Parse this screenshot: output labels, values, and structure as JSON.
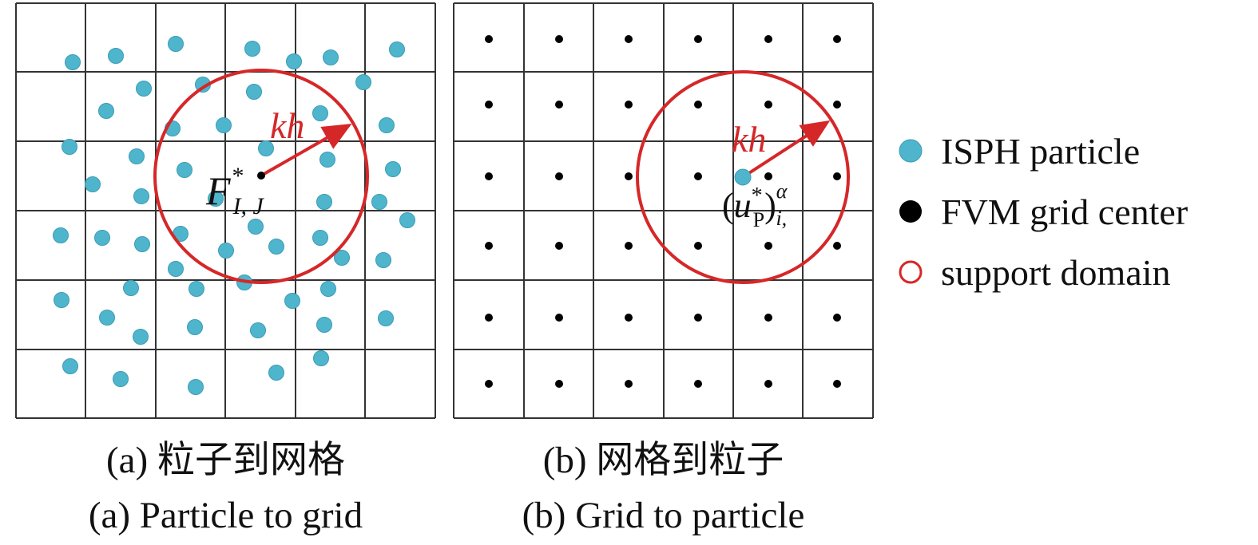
{
  "colors": {
    "particle": "#4fb5cc",
    "grid_center": "#000000",
    "support": "#d62728",
    "grid_line": "#333333"
  },
  "legend": {
    "particle": "ISPH particle",
    "grid_center": "FVM grid center",
    "support": "support domain"
  },
  "panel_a": {
    "radius_label": "kh",
    "center_symbol": "F",
    "center_sup": "*",
    "center_sub": "I, J",
    "caption_zh": "(a) 粒子到网格",
    "caption_en": "(a) Particle to grid"
  },
  "panel_b": {
    "radius_label": "kh",
    "particle_symbol": "u",
    "particle_sup": "*",
    "particle_sub": "P",
    "outer_sup": "α",
    "outer_sub": "i,",
    "caption_zh": "(b) 网格到粒子",
    "caption_en": "(b) Grid to particle"
  },
  "icons": [
    "particle-icon",
    "grid-center-icon",
    "support-domain-icon",
    "radius-arrow-icon"
  ]
}
